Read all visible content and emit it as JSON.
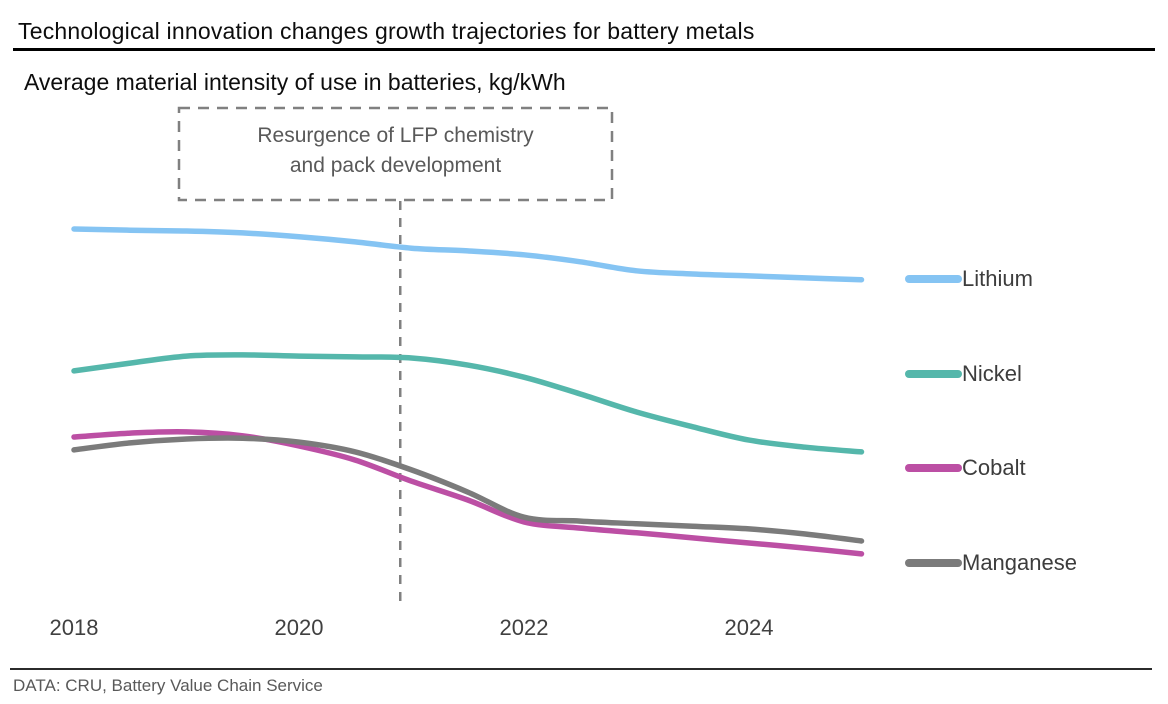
{
  "header": {
    "title": "Technological innovation changes growth trajectories for battery metals",
    "subtitle": "Average material intensity of use in batteries, kg/kWh"
  },
  "footer": {
    "source": "DATA: CRU, Battery Value Chain Service"
  },
  "chart_data": {
    "type": "line",
    "title": "Technological innovation changes growth trajectories for battery metals",
    "subtitle": "Average material intensity of use in batteries, kg/kWh",
    "xlabel": "",
    "ylabel": "kg/kWh",
    "y_unit_note": "y-axis has no ticks or labels in the figure; values are a relative intensity index read from pixel positions, scaled so Lithium 2018 = 100",
    "grid": false,
    "legend_position": "right",
    "x_range": [
      2018,
      2025
    ],
    "x_ticks": [
      2018,
      2020,
      2022,
      2024
    ],
    "x": [
      2018,
      2018.5,
      2019,
      2019.5,
      2020,
      2020.5,
      2021,
      2021.5,
      2022,
      2022.5,
      2023,
      2023.5,
      2024,
      2024.5,
      2025
    ],
    "series": [
      {
        "name": "Lithium",
        "color": "#85C4F3",
        "values": [
          100.0,
          99.7,
          99.5,
          99.0,
          98.0,
          96.7,
          95.1,
          94.4,
          93.4,
          91.6,
          89.3,
          88.5,
          88.0,
          87.5,
          87.0
        ]
      },
      {
        "name": "Nickel",
        "color": "#55B7AB",
        "values": [
          63.7,
          65.7,
          67.5,
          67.8,
          67.5,
          67.3,
          67.0,
          65.2,
          62.1,
          57.8,
          53.2,
          49.4,
          46.0,
          44.2,
          43.0
        ]
      },
      {
        "name": "Cobalt",
        "color": "#BC4FA4",
        "values": [
          46.8,
          47.8,
          48.1,
          47.1,
          44.5,
          40.9,
          35.5,
          30.7,
          25.1,
          23.5,
          22.3,
          21.0,
          19.7,
          18.4,
          16.9
        ]
      },
      {
        "name": "Manganese",
        "color": "#7B7B7B",
        "values": [
          43.5,
          45.3,
          46.3,
          46.5,
          45.5,
          43.0,
          38.4,
          32.7,
          26.3,
          25.3,
          24.6,
          24.0,
          23.3,
          22.0,
          20.2
        ]
      }
    ],
    "annotation": {
      "line1": "Resurgence of LFP chemistry",
      "line2": "and pack development",
      "text": "Resurgence of LFP chemistry and pack development",
      "x_year": 2020.9
    }
  }
}
